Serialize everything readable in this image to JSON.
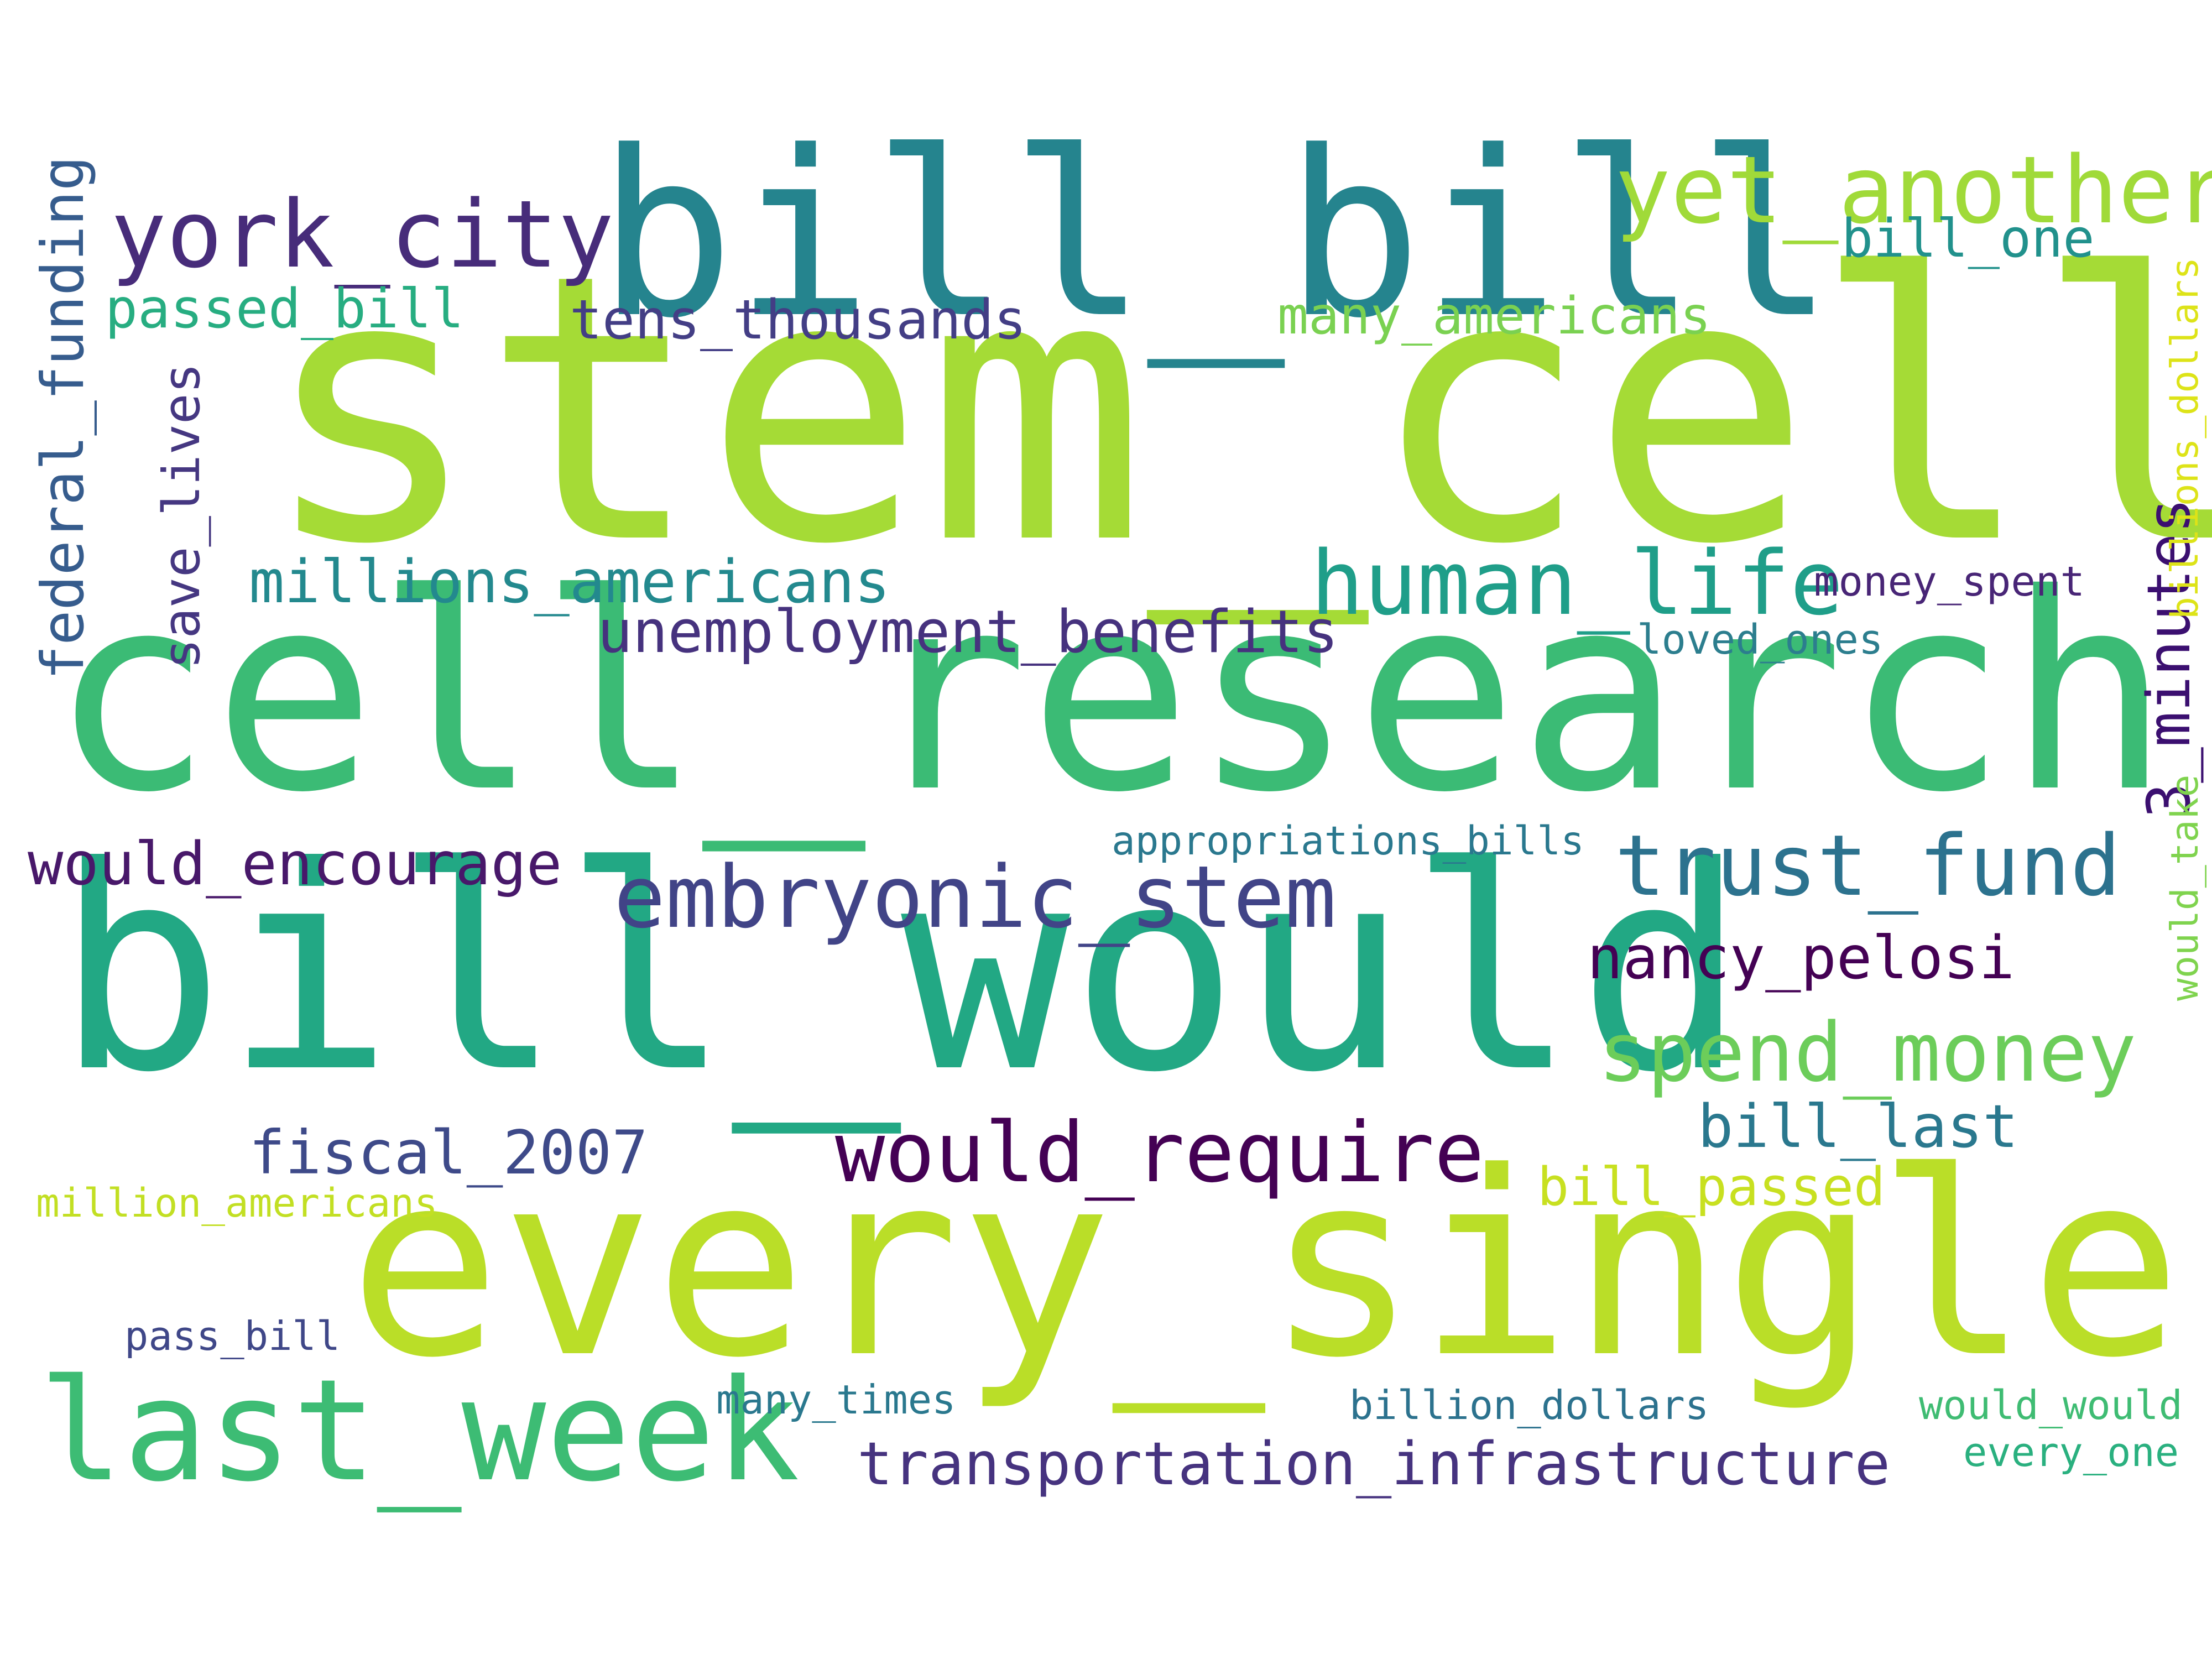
{
  "words": [
    {
      "text": "stem_cell",
      "color": "#a5db36"
    },
    {
      "text": "cell_research",
      "color": "#3bbb75"
    },
    {
      "text": "bill_would",
      "color": "#22a884"
    },
    {
      "text": "every_single",
      "color": "#bade28"
    },
    {
      "text": "bill_bill",
      "color": "#25848e"
    },
    {
      "text": "last_week",
      "color": "#3dbc74"
    },
    {
      "text": "yet_another",
      "color": "#a0da39"
    },
    {
      "text": "york_city",
      "color": "#472c7a"
    },
    {
      "text": "human_life",
      "color": "#1f9e89"
    },
    {
      "text": "embryonic_stem",
      "color": "#414487"
    },
    {
      "text": "trust_fund",
      "color": "#2c728e"
    },
    {
      "text": "would_require",
      "color": "#440154"
    },
    {
      "text": "spend_money",
      "color": "#6ccd5a"
    },
    {
      "text": "millions_americans",
      "color": "#23898e"
    },
    {
      "text": "unemployment_benefits",
      "color": "#46327e"
    },
    {
      "text": "would_encourage",
      "color": "#48186a"
    },
    {
      "text": "fiscal_2007",
      "color": "#3e4a89"
    },
    {
      "text": "nancy_pelosi",
      "color": "#440154"
    },
    {
      "text": "bill_last",
      "color": "#2a788e"
    },
    {
      "text": "transportation_infrastructure",
      "color": "#46337f"
    },
    {
      "text": "passed_bill",
      "color": "#27ad81"
    },
    {
      "text": "tens_thousands",
      "color": "#433e85"
    },
    {
      "text": "many_americans",
      "color": "#7ad151"
    },
    {
      "text": "bill_one",
      "color": "#21918c"
    },
    {
      "text": "bill_passed",
      "color": "#c8e020"
    },
    {
      "text": "3_minutes",
      "color": "#3b0f70"
    },
    {
      "text": "federal_funding",
      "color": "#365c8d"
    },
    {
      "text": "save_lives",
      "color": "#453781"
    },
    {
      "text": "money_spent",
      "color": "#482576"
    },
    {
      "text": "loved_ones",
      "color": "#2c7e8e"
    },
    {
      "text": "appropriations_bills",
      "color": "#2a788e"
    },
    {
      "text": "million_americans",
      "color": "#c2df23"
    },
    {
      "text": "pass_bill",
      "color": "#3f4788"
    },
    {
      "text": "many_times",
      "color": "#2a788e"
    },
    {
      "text": "billion_dollars",
      "color": "#2c728e"
    },
    {
      "text": "would_would",
      "color": "#3fbc73"
    },
    {
      "text": "every_one",
      "color": "#2ab07f"
    },
    {
      "text": "billions_dollars",
      "color": "#dde318"
    },
    {
      "text": "would_take",
      "color": "#7fd34e"
    }
  ]
}
